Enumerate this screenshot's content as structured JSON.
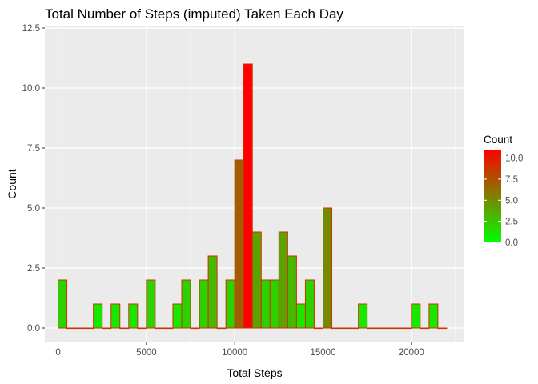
{
  "chart_data": {
    "type": "bar",
    "subtype": "histogram",
    "title": "Total Number of Steps (imputed) Taken Each Day",
    "xlabel": "Total Steps",
    "ylabel": "Count",
    "bin_width": 500,
    "x": [
      250,
      750,
      1250,
      1750,
      2250,
      2750,
      3250,
      3750,
      4250,
      4750,
      5250,
      5750,
      6250,
      6750,
      7250,
      7750,
      8250,
      8750,
      9250,
      9750,
      10250,
      10750,
      11250,
      11750,
      12250,
      12750,
      13250,
      13750,
      14250,
      14750,
      15250,
      15750,
      16250,
      16750,
      17250,
      17750,
      18250,
      18750,
      19250,
      19750,
      20250,
      20750,
      21250,
      21750
    ],
    "values": [
      2,
      0,
      0,
      0,
      1,
      0,
      1,
      0,
      1,
      0,
      2,
      0,
      0,
      1,
      2,
      0,
      2,
      3,
      0,
      2,
      7,
      11,
      4,
      2,
      2,
      4,
      3,
      1,
      2,
      0,
      5,
      0,
      0,
      0,
      1,
      0,
      0,
      0,
      0,
      0,
      1,
      0,
      1,
      0
    ],
    "xlim": [
      -750,
      23000
    ],
    "ylim": [
      -0.6,
      12.6
    ],
    "x_ticks": [
      {
        "value": 0,
        "label": "0"
      },
      {
        "value": 5000,
        "label": "5000"
      },
      {
        "value": 10000,
        "label": "10000"
      },
      {
        "value": 15000,
        "label": "15000"
      },
      {
        "value": 20000,
        "label": "20000"
      }
    ],
    "y_ticks": [
      {
        "value": 0,
        "label": "0.0"
      },
      {
        "value": 2.5,
        "label": "2.5"
      },
      {
        "value": 5,
        "label": "5.0"
      },
      {
        "value": 7.5,
        "label": "7.5"
      },
      {
        "value": 10,
        "label": "10.0"
      },
      {
        "value": 12.5,
        "label": "12.5"
      }
    ],
    "grid": true,
    "fill_scale": {
      "low": "#00ff00",
      "high": "#ff0000",
      "min": 0,
      "max": 11
    },
    "bar_outline_color": "#cc3300",
    "panel_background": "#ebebeb",
    "gridline_color": "#ffffff",
    "legend": {
      "title": "Count",
      "position": "right",
      "ticks": [
        {
          "value": 0,
          "label": "0.0"
        },
        {
          "value": 2.5,
          "label": "2.5"
        },
        {
          "value": 5,
          "label": "5.0"
        },
        {
          "value": 7.5,
          "label": "7.5"
        },
        {
          "value": 10,
          "label": "10.0"
        }
      ]
    }
  }
}
